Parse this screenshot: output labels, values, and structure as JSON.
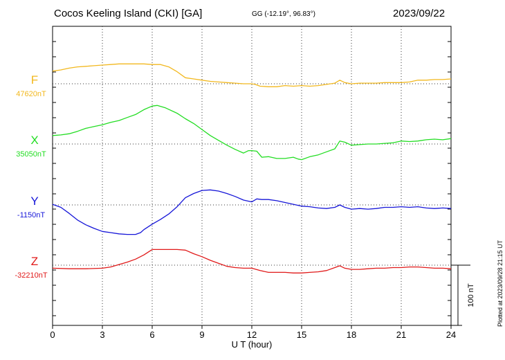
{
  "header": {
    "station": "Cocos Keeling Island (CKI)  [GA]",
    "coordinates": "GG (-12.19°,  96.83°)",
    "date": "2023/09/22"
  },
  "plotted_note": "Plotted at 2023/09/28 21:15 UT",
  "chart_data": {
    "type": "line",
    "xlabel": "U T (hour)",
    "xlim": [
      0,
      24
    ],
    "xticks": [
      "0",
      "3",
      "6",
      "9",
      "12",
      "15",
      "18",
      "21",
      "24"
    ],
    "scale_bar_label": "100 nT",
    "scale_bar_nT": 100,
    "grid": true,
    "series": [
      {
        "name": "F",
        "baseline_label": "47620nT",
        "baseline": 47620,
        "color": "#f2b81e",
        "points": [
          [
            0,
            47641
          ],
          [
            0.5,
            47643
          ],
          [
            1,
            47646
          ],
          [
            1.5,
            47648
          ],
          [
            2,
            47649
          ],
          [
            2.5,
            47650
          ],
          [
            3,
            47651
          ],
          [
            3.5,
            47652
          ],
          [
            4,
            47653
          ],
          [
            4.5,
            47653
          ],
          [
            5,
            47653
          ],
          [
            5.5,
            47653
          ],
          [
            6,
            47652
          ],
          [
            6.5,
            47652
          ],
          [
            7,
            47648
          ],
          [
            7.5,
            47640
          ],
          [
            8,
            47630
          ],
          [
            8.5,
            47628
          ],
          [
            9,
            47626
          ],
          [
            9.5,
            47624
          ],
          [
            10,
            47623
          ],
          [
            10.5,
            47622
          ],
          [
            11,
            47621
          ],
          [
            11.5,
            47620
          ],
          [
            12,
            47620
          ],
          [
            12.2,
            47619
          ],
          [
            12.5,
            47616
          ],
          [
            13,
            47615
          ],
          [
            13.5,
            47615
          ],
          [
            14,
            47617
          ],
          [
            14.5,
            47616
          ],
          [
            15,
            47617
          ],
          [
            15.5,
            47616
          ],
          [
            16,
            47617
          ],
          [
            16.5,
            47619
          ],
          [
            17,
            47621
          ],
          [
            17.3,
            47626
          ],
          [
            17.6,
            47622
          ],
          [
            18,
            47620
          ],
          [
            18.5,
            47621
          ],
          [
            19,
            47621
          ],
          [
            19.5,
            47621
          ],
          [
            20,
            47622
          ],
          [
            20.5,
            47622
          ],
          [
            21,
            47622
          ],
          [
            21.5,
            47623
          ],
          [
            22,
            47626
          ],
          [
            22.5,
            47626
          ],
          [
            23,
            47627
          ],
          [
            23.5,
            47627
          ],
          [
            24,
            47628
          ]
        ]
      },
      {
        "name": "X",
        "baseline_label": "35050nT",
        "baseline": 35050,
        "color": "#22dd22",
        "points": [
          [
            0,
            35064
          ],
          [
            0.5,
            35065
          ],
          [
            1,
            35067
          ],
          [
            1.5,
            35071
          ],
          [
            2,
            35076
          ],
          [
            2.5,
            35079
          ],
          [
            3,
            35082
          ],
          [
            3.5,
            35086
          ],
          [
            4,
            35089
          ],
          [
            4.5,
            35094
          ],
          [
            5,
            35099
          ],
          [
            5.5,
            35107
          ],
          [
            6,
            35113
          ],
          [
            6.3,
            35114
          ],
          [
            6.8,
            35110
          ],
          [
            7.5,
            35101
          ],
          [
            8,
            35092
          ],
          [
            8.5,
            35084
          ],
          [
            9,
            35074
          ],
          [
            9.5,
            35064
          ],
          [
            10,
            35056
          ],
          [
            10.5,
            35048
          ],
          [
            11,
            35041
          ],
          [
            11.5,
            35035
          ],
          [
            11.8,
            35039
          ],
          [
            12,
            35039
          ],
          [
            12.3,
            35038
          ],
          [
            12.6,
            35028
          ],
          [
            13,
            35029
          ],
          [
            13.5,
            35026
          ],
          [
            14,
            35026
          ],
          [
            14.5,
            35028
          ],
          [
            14.8,
            35025
          ],
          [
            15,
            35024
          ],
          [
            15.5,
            35029
          ],
          [
            16,
            35032
          ],
          [
            16.5,
            35037
          ],
          [
            17,
            35042
          ],
          [
            17.3,
            35055
          ],
          [
            17.6,
            35053
          ],
          [
            18,
            35048
          ],
          [
            18.5,
            35049
          ],
          [
            19,
            35050
          ],
          [
            19.5,
            35050
          ],
          [
            20,
            35051
          ],
          [
            20.5,
            35052
          ],
          [
            21,
            35055
          ],
          [
            21.5,
            35054
          ],
          [
            22,
            35055
          ],
          [
            22.5,
            35057
          ],
          [
            23,
            35058
          ],
          [
            23.5,
            35057
          ],
          [
            24,
            35059
          ]
        ]
      },
      {
        "name": "Y",
        "baseline_label": "-1150nT",
        "baseline": -1150,
        "color": "#1515d8",
        "points": [
          [
            0,
            -1149
          ],
          [
            0.5,
            -1154
          ],
          [
            1,
            -1164
          ],
          [
            1.5,
            -1175
          ],
          [
            2,
            -1183
          ],
          [
            2.5,
            -1189
          ],
          [
            3,
            -1194
          ],
          [
            3.5,
            -1196
          ],
          [
            4,
            -1198
          ],
          [
            4.5,
            -1199
          ],
          [
            5,
            -1199
          ],
          [
            5.3,
            -1196
          ],
          [
            5.5,
            -1191
          ],
          [
            6,
            -1182
          ],
          [
            6.5,
            -1174
          ],
          [
            7,
            -1165
          ],
          [
            7.5,
            -1153
          ],
          [
            8,
            -1138
          ],
          [
            8.5,
            -1131
          ],
          [
            9,
            -1126
          ],
          [
            9.5,
            -1125
          ],
          [
            10,
            -1127
          ],
          [
            10.5,
            -1131
          ],
          [
            11,
            -1136
          ],
          [
            11.5,
            -1142
          ],
          [
            12,
            -1145
          ],
          [
            12.3,
            -1140
          ],
          [
            12.6,
            -1141
          ],
          [
            13,
            -1141
          ],
          [
            13.5,
            -1143
          ],
          [
            14,
            -1146
          ],
          [
            14.5,
            -1149
          ],
          [
            15,
            -1152
          ],
          [
            15.5,
            -1153
          ],
          [
            16,
            -1155
          ],
          [
            16.5,
            -1156
          ],
          [
            17,
            -1154
          ],
          [
            17.3,
            -1150
          ],
          [
            17.6,
            -1154
          ],
          [
            18,
            -1157
          ],
          [
            18.5,
            -1156
          ],
          [
            19,
            -1157
          ],
          [
            19.5,
            -1156
          ],
          [
            20,
            -1154
          ],
          [
            20.5,
            -1154
          ],
          [
            21,
            -1153
          ],
          [
            21.5,
            -1154
          ],
          [
            22,
            -1153
          ],
          [
            22.5,
            -1155
          ],
          [
            23,
            -1156
          ],
          [
            23.5,
            -1155
          ],
          [
            24,
            -1156
          ]
        ]
      },
      {
        "name": "Z",
        "baseline_label": "-32210nT",
        "baseline": -32210,
        "color": "#e01818",
        "points": [
          [
            0,
            -32215
          ],
          [
            1,
            -32216
          ],
          [
            2,
            -32216
          ],
          [
            3,
            -32215
          ],
          [
            3.5,
            -32213
          ],
          [
            4,
            -32209
          ],
          [
            4.5,
            -32205
          ],
          [
            5,
            -32200
          ],
          [
            5.5,
            -32193
          ],
          [
            6,
            -32184
          ],
          [
            6.5,
            -32184
          ],
          [
            7,
            -32184
          ],
          [
            7.5,
            -32184
          ],
          [
            8,
            -32185
          ],
          [
            8.5,
            -32191
          ],
          [
            9,
            -32196
          ],
          [
            9.5,
            -32202
          ],
          [
            10,
            -32207
          ],
          [
            10.5,
            -32212
          ],
          [
            11,
            -32214
          ],
          [
            11.5,
            -32215
          ],
          [
            12,
            -32215
          ],
          [
            12.5,
            -32219
          ],
          [
            13,
            -32222
          ],
          [
            13.5,
            -32222
          ],
          [
            14,
            -32222
          ],
          [
            14.5,
            -32223
          ],
          [
            15,
            -32223
          ],
          [
            15.5,
            -32222
          ],
          [
            16,
            -32221
          ],
          [
            16.5,
            -32219
          ],
          [
            17,
            -32214
          ],
          [
            17.3,
            -32211
          ],
          [
            17.6,
            -32215
          ],
          [
            18,
            -32217
          ],
          [
            18.5,
            -32217
          ],
          [
            19,
            -32216
          ],
          [
            19.5,
            -32215
          ],
          [
            20,
            -32215
          ],
          [
            20.5,
            -32214
          ],
          [
            21,
            -32214
          ],
          [
            21.5,
            -32213
          ],
          [
            22,
            -32213
          ],
          [
            22.5,
            -32214
          ],
          [
            23,
            -32215
          ],
          [
            23.5,
            -32215
          ],
          [
            24,
            -32216
          ]
        ]
      }
    ]
  }
}
